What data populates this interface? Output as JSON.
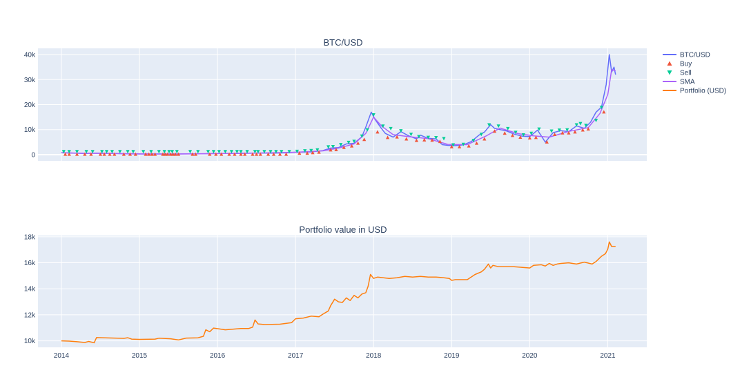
{
  "chart_data": [
    {
      "type": "line",
      "title": "BTC/USD",
      "xlabel": "",
      "ylabel": "",
      "x_range": [
        2013.7,
        2021.5
      ],
      "ylim": [
        -2500,
        42500
      ],
      "y_ticks": [
        0,
        10000,
        20000,
        30000,
        40000
      ],
      "y_tick_labels": [
        "0",
        "10k",
        "20k",
        "30k",
        "40k"
      ],
      "grid": true,
      "series": [
        {
          "name": "BTC/USD",
          "color": "#636efa",
          "x": [
            2014.0,
            2014.15,
            2014.3,
            2014.45,
            2014.6,
            2014.8,
            2015.0,
            2015.2,
            2015.4,
            2015.6,
            2015.8,
            2016.0,
            2016.2,
            2016.4,
            2016.55,
            2016.7,
            2016.9,
            2017.0,
            2017.2,
            2017.35,
            2017.45,
            2017.55,
            2017.65,
            2017.75,
            2017.85,
            2017.9,
            2017.97,
            2018.02,
            2018.1,
            2018.15,
            2018.25,
            2018.35,
            2018.45,
            2018.55,
            2018.6,
            2018.7,
            2018.8,
            2018.88,
            2018.95,
            2019.05,
            2019.15,
            2019.25,
            2019.35,
            2019.42,
            2019.5,
            2019.55,
            2019.62,
            2019.7,
            2019.8,
            2019.9,
            2020.0,
            2020.1,
            2020.2,
            2020.3,
            2020.4,
            2020.5,
            2020.6,
            2020.7,
            2020.78,
            2020.85,
            2020.92,
            2020.98,
            2021.02,
            2021.05,
            2021.08,
            2021.1
          ],
          "y": [
            800,
            600,
            450,
            600,
            500,
            350,
            250,
            250,
            240,
            280,
            330,
            430,
            420,
            570,
            650,
            610,
            740,
            970,
            1100,
            1600,
            2600,
            2800,
            4300,
            4500,
            7200,
            11000,
            17000,
            14000,
            10500,
            8500,
            7000,
            9200,
            7500,
            6300,
            7800,
            6500,
            6300,
            4000,
            3700,
            3600,
            3900,
            5200,
            7800,
            9000,
            12000,
            10500,
            10000,
            9500,
            8200,
            7400,
            7200,
            9800,
            5000,
            8800,
            9600,
            9200,
            11500,
            10500,
            13000,
            17000,
            19000,
            28000,
            40000,
            33000,
            35000,
            32000
          ]
        },
        {
          "name": "SMA",
          "color": "#ab63fa",
          "x": [
            2014.0,
            2014.3,
            2014.6,
            2015.0,
            2015.5,
            2016.0,
            2016.5,
            2017.0,
            2017.35,
            2017.55,
            2017.75,
            2017.9,
            2018.0,
            2018.1,
            2018.25,
            2018.45,
            2018.7,
            2018.95,
            2019.2,
            2019.45,
            2019.62,
            2019.85,
            2020.05,
            2020.25,
            2020.5,
            2020.75,
            2020.9,
            2021.0,
            2021.05,
            2021.1
          ],
          "y": [
            750,
            550,
            500,
            280,
            250,
            420,
            620,
            950,
            1500,
            2600,
            4300,
            8500,
            15000,
            11500,
            8000,
            7200,
            6400,
            4100,
            4000,
            7600,
            10600,
            8400,
            7500,
            7000,
            9300,
            10800,
            16500,
            24000,
            34000,
            33500
          ]
        },
        {
          "name": "Portfolio (USD)",
          "color": "#ff7f0e",
          "x": [],
          "y": []
        }
      ],
      "markers": [
        {
          "name": "Buy",
          "color": "#ef553b",
          "symbol": "triangle-up",
          "x": [
            2014.05,
            2014.1,
            2014.2,
            2014.3,
            2014.38,
            2014.5,
            2014.55,
            2014.62,
            2014.68,
            2014.8,
            2014.88,
            2014.95,
            2015.08,
            2015.12,
            2015.16,
            2015.2,
            2015.3,
            2015.33,
            2015.36,
            2015.4,
            2015.43,
            2015.46,
            2015.5,
            2015.68,
            2015.72,
            2015.9,
            2015.98,
            2016.05,
            2016.15,
            2016.22,
            2016.3,
            2016.35,
            2016.45,
            2016.5,
            2016.55,
            2016.65,
            2016.72,
            2016.8,
            2016.88,
            2017.05,
            2017.15,
            2017.22,
            2017.3,
            2017.45,
            2017.52,
            2017.62,
            2017.72,
            2017.8,
            2017.88,
            2018.05,
            2018.18,
            2018.3,
            2018.42,
            2018.55,
            2018.65,
            2018.75,
            2018.85,
            2019.0,
            2019.1,
            2019.22,
            2019.32,
            2019.42,
            2019.55,
            2019.68,
            2019.78,
            2019.88,
            2020.0,
            2020.08,
            2020.22,
            2020.32,
            2020.42,
            2020.5,
            2020.58,
            2020.68,
            2020.75,
            2020.95
          ],
          "y": [
            100,
            100,
            100,
            100,
            100,
            100,
            100,
            100,
            100,
            100,
            100,
            100,
            100,
            100,
            100,
            100,
            100,
            100,
            100,
            100,
            100,
            100,
            100,
            100,
            100,
            100,
            100,
            100,
            100,
            100,
            100,
            100,
            100,
            100,
            100,
            100,
            100,
            100,
            100,
            500,
            500,
            700,
            900,
            1800,
            1900,
            2800,
            3400,
            4500,
            6000,
            9000,
            6800,
            7000,
            6200,
            5600,
            5800,
            5700,
            5200,
            3100,
            3100,
            3400,
            4500,
            6200,
            9300,
            8500,
            7600,
            6900,
            6600,
            6800,
            5000,
            8000,
            8600,
            8600,
            9000,
            9800,
            10200,
            17000
          ]
        },
        {
          "name": "Sell",
          "color": "#00cc96",
          "symbol": "triangle-down",
          "x": [
            2014.03,
            2014.1,
            2014.2,
            2014.32,
            2014.4,
            2014.52,
            2014.58,
            2014.65,
            2014.75,
            2014.85,
            2014.92,
            2015.05,
            2015.15,
            2015.25,
            2015.32,
            2015.38,
            2015.42,
            2015.48,
            2015.65,
            2015.75,
            2015.88,
            2015.95,
            2016.02,
            2016.1,
            2016.18,
            2016.25,
            2016.3,
            2016.38,
            2016.48,
            2016.52,
            2016.6,
            2016.68,
            2016.75,
            2016.82,
            2016.92,
            2017.02,
            2017.12,
            2017.2,
            2017.28,
            2017.42,
            2017.48,
            2017.58,
            2017.68,
            2017.75,
            2017.85,
            2017.92,
            2018.0,
            2018.12,
            2018.22,
            2018.35,
            2018.48,
            2018.58,
            2018.7,
            2018.8,
            2018.9,
            2019.02,
            2019.15,
            2019.28,
            2019.38,
            2019.48,
            2019.6,
            2019.72,
            2019.82,
            2019.92,
            2020.02,
            2020.12,
            2020.28,
            2020.38,
            2020.48,
            2020.6,
            2020.65,
            2020.72,
            2020.85,
            2020.92
          ],
          "y": [
            1300,
            1300,
            1300,
            1300,
            1300,
            1300,
            1300,
            1300,
            1300,
            1300,
            1300,
            1300,
            1300,
            1300,
            1300,
            1300,
            1300,
            1300,
            1300,
            1300,
            1300,
            1300,
            1300,
            1300,
            1300,
            1300,
            1300,
            1300,
            1300,
            1300,
            1300,
            1300,
            1300,
            1300,
            1300,
            1400,
            1600,
            1700,
            2000,
            3200,
            3300,
            4100,
            5000,
            5400,
            7500,
            10000,
            16000,
            11500,
            10500,
            9600,
            8200,
            7300,
            7000,
            6900,
            6500,
            4000,
            4200,
            5700,
            8200,
            12000,
            11500,
            10500,
            9000,
            8000,
            8600,
            10300,
            9500,
            9900,
            10000,
            12000,
            12500,
            11800,
            13800,
            19000
          ]
        }
      ]
    },
    {
      "type": "line",
      "title": "Portfolio value in USD",
      "xlabel": "",
      "ylabel": "",
      "x_range": [
        2013.7,
        2021.5
      ],
      "x_ticks": [
        2014,
        2015,
        2016,
        2017,
        2018,
        2019,
        2020,
        2021
      ],
      "x_tick_labels": [
        "2014",
        "2015",
        "2016",
        "2017",
        "2018",
        "2019",
        "2020",
        "2021"
      ],
      "ylim": [
        9500,
        18100
      ],
      "y_ticks": [
        10000,
        12000,
        14000,
        16000,
        18000
      ],
      "y_tick_labels": [
        "10k",
        "12k",
        "14k",
        "16k",
        "18k"
      ],
      "grid": true,
      "series": [
        {
          "name": "Portfolio (USD)",
          "color": "#ff7f0e",
          "x": [
            2014.0,
            2014.1,
            2014.2,
            2014.3,
            2014.35,
            2014.42,
            2014.45,
            2014.6,
            2014.8,
            2014.85,
            2014.9,
            2015.0,
            2015.2,
            2015.25,
            2015.4,
            2015.5,
            2015.6,
            2015.75,
            2015.82,
            2015.85,
            2015.9,
            2015.95,
            2016.1,
            2016.3,
            2016.4,
            2016.45,
            2016.48,
            2016.52,
            2016.6,
            2016.8,
            2016.95,
            2017.0,
            2017.1,
            2017.2,
            2017.3,
            2017.35,
            2017.42,
            2017.45,
            2017.5,
            2017.55,
            2017.6,
            2017.65,
            2017.7,
            2017.75,
            2017.8,
            2017.85,
            2017.9,
            2017.93,
            2017.96,
            2018.0,
            2018.05,
            2018.2,
            2018.3,
            2018.4,
            2018.5,
            2018.6,
            2018.7,
            2018.8,
            2018.9,
            2018.97,
            2019.0,
            2019.05,
            2019.2,
            2019.3,
            2019.38,
            2019.42,
            2019.47,
            2019.5,
            2019.53,
            2019.6,
            2019.8,
            2020.0,
            2020.05,
            2020.15,
            2020.2,
            2020.25,
            2020.3,
            2020.35,
            2020.4,
            2020.5,
            2020.6,
            2020.7,
            2020.8,
            2020.85,
            2020.92,
            2020.97,
            2021.0,
            2021.02,
            2021.05,
            2021.1
          ],
          "y": [
            10000,
            9980,
            9930,
            9870,
            9950,
            9850,
            10250,
            10220,
            10190,
            10240,
            10130,
            10110,
            10130,
            10200,
            10160,
            10070,
            10210,
            10230,
            10350,
            10850,
            10700,
            10980,
            10850,
            10950,
            10950,
            11050,
            11600,
            11300,
            11250,
            11280,
            11400,
            11700,
            11750,
            11900,
            11850,
            12050,
            12300,
            12700,
            13200,
            13000,
            12950,
            13300,
            13100,
            13500,
            13300,
            13600,
            13700,
            14200,
            15100,
            14800,
            14900,
            14800,
            14850,
            14950,
            14900,
            14950,
            14900,
            14900,
            14850,
            14800,
            14650,
            14700,
            14700,
            15100,
            15300,
            15500,
            15900,
            15600,
            15800,
            15700,
            15700,
            15600,
            15800,
            15850,
            15750,
            15950,
            15800,
            15900,
            15950,
            16000,
            15900,
            16050,
            15900,
            16100,
            16500,
            16700,
            17050,
            17600,
            17250,
            17250
          ]
        }
      ]
    }
  ]
}
